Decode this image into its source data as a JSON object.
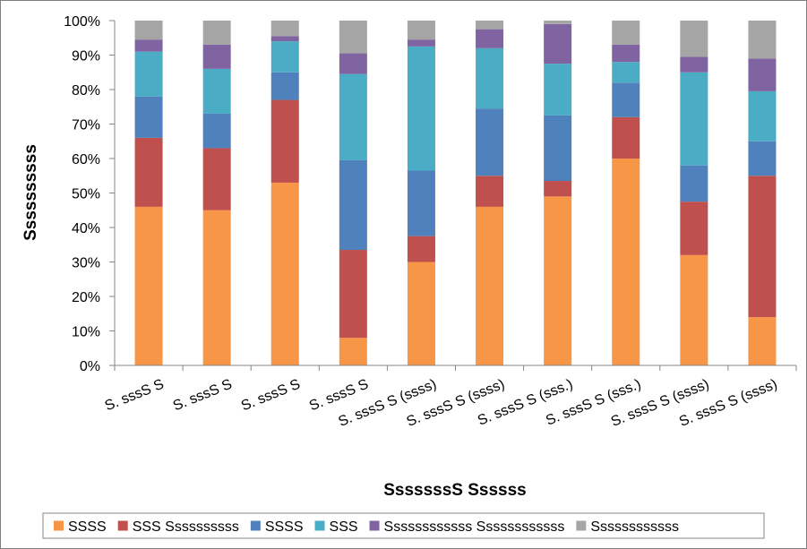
{
  "chart_data": {
    "type": "bar",
    "stacked": true,
    "percent_stacked": true,
    "title": "",
    "xlabel": "SssssssS Ssssss",
    "ylabel": "Ssssssssss",
    "ylim": [
      0,
      100
    ],
    "y_ticks": [
      "0%",
      "10%",
      "20%",
      "30%",
      "40%",
      "50%",
      "60%",
      "70%",
      "80%",
      "90%",
      "100%"
    ],
    "grid": false,
    "legend_position": "bottom",
    "categories": [
      "S. sssS S",
      "S. sssS S",
      "S. sssS S",
      "S. sssS S",
      "S. sssS S (ssss)",
      "S. sssS S (ssss)",
      "S. sssS S (sss.)",
      "S. sssS S (sss.)",
      "S. sssS S (ssss)",
      "S. sssS S (ssss)"
    ],
    "series": [
      {
        "name": "SSSS",
        "color": "#f79646",
        "values": [
          46,
          45,
          53,
          8,
          30,
          46,
          49,
          60,
          32,
          14
        ]
      },
      {
        "name": "SSS Ssssssssss",
        "color": "#c0504d",
        "values": [
          20,
          18,
          24,
          25.5,
          7.5,
          9,
          4.5,
          12,
          15.5,
          41
        ]
      },
      {
        "name": "SSSS",
        "color": "#4f81bd",
        "values": [
          12,
          10,
          8,
          26,
          19,
          19.5,
          19,
          10,
          10.5,
          10
        ]
      },
      {
        "name": "SSS",
        "color": "#4bacc6",
        "values": [
          13,
          13,
          9,
          25,
          36,
          17.5,
          15,
          6,
          27,
          14.5
        ]
      },
      {
        "name": "Ssssssssssss Ssssssssssss",
        "color": "#8064a2",
        "values": [
          3.5,
          7,
          1.5,
          6,
          2,
          5.5,
          11.5,
          5,
          4.5,
          9.5
        ]
      },
      {
        "name": "Ssssssssssss",
        "color": "#a5a5a5",
        "values": [
          5.5,
          7,
          4.5,
          9.5,
          5.5,
          2.5,
          1,
          7,
          10.5,
          11
        ]
      }
    ]
  }
}
